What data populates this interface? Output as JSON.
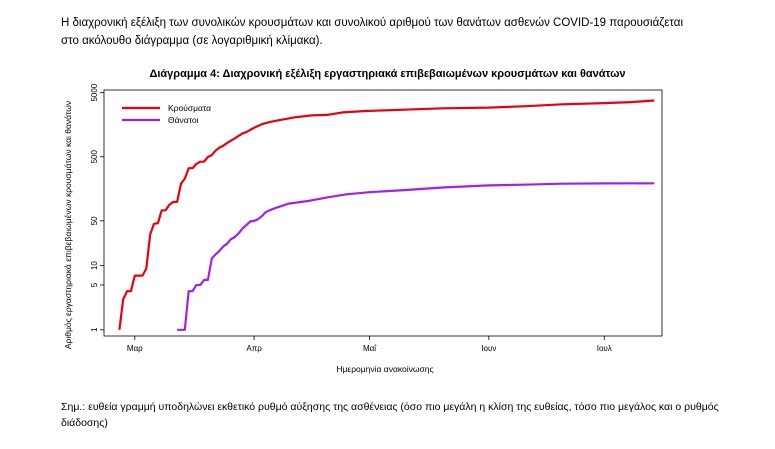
{
  "intro_text": "Η διαχρονική εξέλιξη των συνολικών κρουσμάτων και συνολικού αριθμού των θανάτων ασθενών COVID-19 παρουσιάζεται στο ακόλουθο διάγραμμα (σε λογαριθμική κλίμακα).",
  "note_text": "Σημ.: ευθεία γραμμή υποδηλώνει εκθετικό ρυθμό αύξησης της ασθένειας (όσο πιο μεγάλη η κλίση της ευθείας, τόσο πιο μεγάλος και ο ρυθμός διάδοσης)",
  "chart_data": {
    "type": "line",
    "title": "Διάγραμμα 4: Διαχρονική εξέλιξη εργαστηριακά επιβεβαιωμένων κρουσμάτων και θανάτων",
    "xlabel": "Ημερομηνία ανακοίνωσης",
    "ylabel": "Αριθμός εργαστηριακά επιβεβαιωμένων κρουσμάτων και θανάτων",
    "y_scale": "log",
    "ylim": [
      0.8,
      5500
    ],
    "y_ticks": [
      1,
      5,
      10,
      50,
      500,
      5000
    ],
    "xlim": [
      "2020-02-22",
      "2020-07-16"
    ],
    "x_ticks": [
      {
        "date": "2020-03-01",
        "label": "Μαρ"
      },
      {
        "date": "2020-04-01",
        "label": "Απρ"
      },
      {
        "date": "2020-05-01",
        "label": "Μαΐ"
      },
      {
        "date": "2020-06-01",
        "label": "Ιουν"
      },
      {
        "date": "2020-07-01",
        "label": "Ιουλ"
      }
    ],
    "legend_position": "top-left",
    "series": [
      {
        "name": "Κρούσματα",
        "color": "#e8000b",
        "points": [
          [
            "2020-02-26",
            1
          ],
          [
            "2020-02-27",
            3
          ],
          [
            "2020-02-28",
            4
          ],
          [
            "2020-02-29",
            4
          ],
          [
            "2020-03-01",
            7
          ],
          [
            "2020-03-02",
            7
          ],
          [
            "2020-03-03",
            7
          ],
          [
            "2020-03-04",
            9
          ],
          [
            "2020-03-05",
            31
          ],
          [
            "2020-03-06",
            45
          ],
          [
            "2020-03-07",
            46
          ],
          [
            "2020-03-08",
            73
          ],
          [
            "2020-03-09",
            73
          ],
          [
            "2020-03-10",
            89
          ],
          [
            "2020-03-11",
            99
          ],
          [
            "2020-03-12",
            99
          ],
          [
            "2020-03-13",
            190
          ],
          [
            "2020-03-14",
            228
          ],
          [
            "2020-03-15",
            331
          ],
          [
            "2020-03-16",
            331
          ],
          [
            "2020-03-17",
            387
          ],
          [
            "2020-03-18",
            418
          ],
          [
            "2020-03-19",
            418
          ],
          [
            "2020-03-20",
            495
          ],
          [
            "2020-03-21",
            530
          ],
          [
            "2020-03-22",
            624
          ],
          [
            "2020-03-23",
            695
          ],
          [
            "2020-03-24",
            743
          ],
          [
            "2020-03-25",
            821
          ],
          [
            "2020-03-26",
            892
          ],
          [
            "2020-03-27",
            966
          ],
          [
            "2020-03-28",
            1061
          ],
          [
            "2020-03-29",
            1156
          ],
          [
            "2020-03-30",
            1212
          ],
          [
            "2020-03-31",
            1314
          ],
          [
            "2020-04-01",
            1415
          ],
          [
            "2020-04-03",
            1613
          ],
          [
            "2020-04-05",
            1735
          ],
          [
            "2020-04-08",
            1884
          ],
          [
            "2020-04-12",
            2081
          ],
          [
            "2020-04-16",
            2207
          ],
          [
            "2020-04-20",
            2245
          ],
          [
            "2020-04-24",
            2463
          ],
          [
            "2020-04-30",
            2591
          ],
          [
            "2020-05-10",
            2710
          ],
          [
            "2020-05-20",
            2850
          ],
          [
            "2020-06-01",
            2918
          ],
          [
            "2020-06-10",
            3058
          ],
          [
            "2020-06-20",
            3287
          ],
          [
            "2020-07-01",
            3432
          ],
          [
            "2020-07-08",
            3562
          ],
          [
            "2020-07-14",
            3772
          ]
        ]
      },
      {
        "name": "Θάνατοι",
        "color": "#a020f0",
        "points": [
          [
            "2020-03-12",
            1
          ],
          [
            "2020-03-13",
            1
          ],
          [
            "2020-03-14",
            1
          ],
          [
            "2020-03-15",
            4
          ],
          [
            "2020-03-16",
            4
          ],
          [
            "2020-03-17",
            5
          ],
          [
            "2020-03-18",
            5
          ],
          [
            "2020-03-19",
            6
          ],
          [
            "2020-03-20",
            6
          ],
          [
            "2020-03-21",
            13
          ],
          [
            "2020-03-22",
            15
          ],
          [
            "2020-03-23",
            17
          ],
          [
            "2020-03-24",
            20
          ],
          [
            "2020-03-25",
            22
          ],
          [
            "2020-03-26",
            26
          ],
          [
            "2020-03-27",
            28
          ],
          [
            "2020-03-28",
            32
          ],
          [
            "2020-03-29",
            38
          ],
          [
            "2020-03-30",
            43
          ],
          [
            "2020-03-31",
            49
          ],
          [
            "2020-04-01",
            50
          ],
          [
            "2020-04-02",
            53
          ],
          [
            "2020-04-03",
            59
          ],
          [
            "2020-04-04",
            68
          ],
          [
            "2020-04-05",
            73
          ],
          [
            "2020-04-07",
            81
          ],
          [
            "2020-04-10",
            93
          ],
          [
            "2020-04-15",
            102
          ],
          [
            "2020-04-20",
            116
          ],
          [
            "2020-04-25",
            130
          ],
          [
            "2020-05-01",
            140
          ],
          [
            "2020-05-10",
            151
          ],
          [
            "2020-05-20",
            166
          ],
          [
            "2020-06-01",
            179
          ],
          [
            "2020-06-10",
            183
          ],
          [
            "2020-06-20",
            190
          ],
          [
            "2020-07-01",
            192
          ],
          [
            "2020-07-14",
            193
          ]
        ]
      }
    ]
  }
}
